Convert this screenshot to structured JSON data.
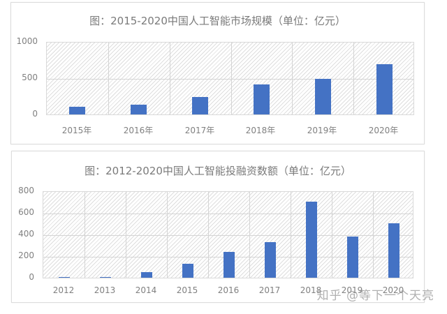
{
  "colors": {
    "bar": "#4472c4",
    "grid": "#d4d4d4",
    "text": "#808080",
    "title": "#7a7a7a"
  },
  "chart_data": [
    {
      "type": "bar",
      "title": "图：2015-2020中国人工智能市场规模（单位：亿元）",
      "categories": [
        "2015年",
        "2016年",
        "2017年",
        "2018年",
        "2019年",
        "2020年"
      ],
      "values": [
        105,
        135,
        237,
        415,
        489,
        696
      ],
      "xlabel": "",
      "ylabel": "",
      "ylim": [
        0,
        1000
      ],
      "yticks": [
        "1000",
        "500",
        "0"
      ],
      "grid": true,
      "legend": "none"
    },
    {
      "type": "bar",
      "title": "图：2012-2020中国人工智能投融资数额（单位：亿元）",
      "categories": [
        "2012",
        "2013",
        "2014",
        "2015",
        "2016",
        "2017",
        "2018",
        "2019",
        "2020"
      ],
      "values": [
        2,
        6,
        52,
        130,
        239,
        330,
        700,
        380,
        500
      ],
      "xlabel": "",
      "ylabel": "",
      "ylim": [
        0,
        800
      ],
      "yticks": [
        "800",
        "600",
        "400",
        "200",
        "0"
      ],
      "grid": true,
      "legend": "none"
    }
  ],
  "watermark": "知乎 @等下一个天亮"
}
